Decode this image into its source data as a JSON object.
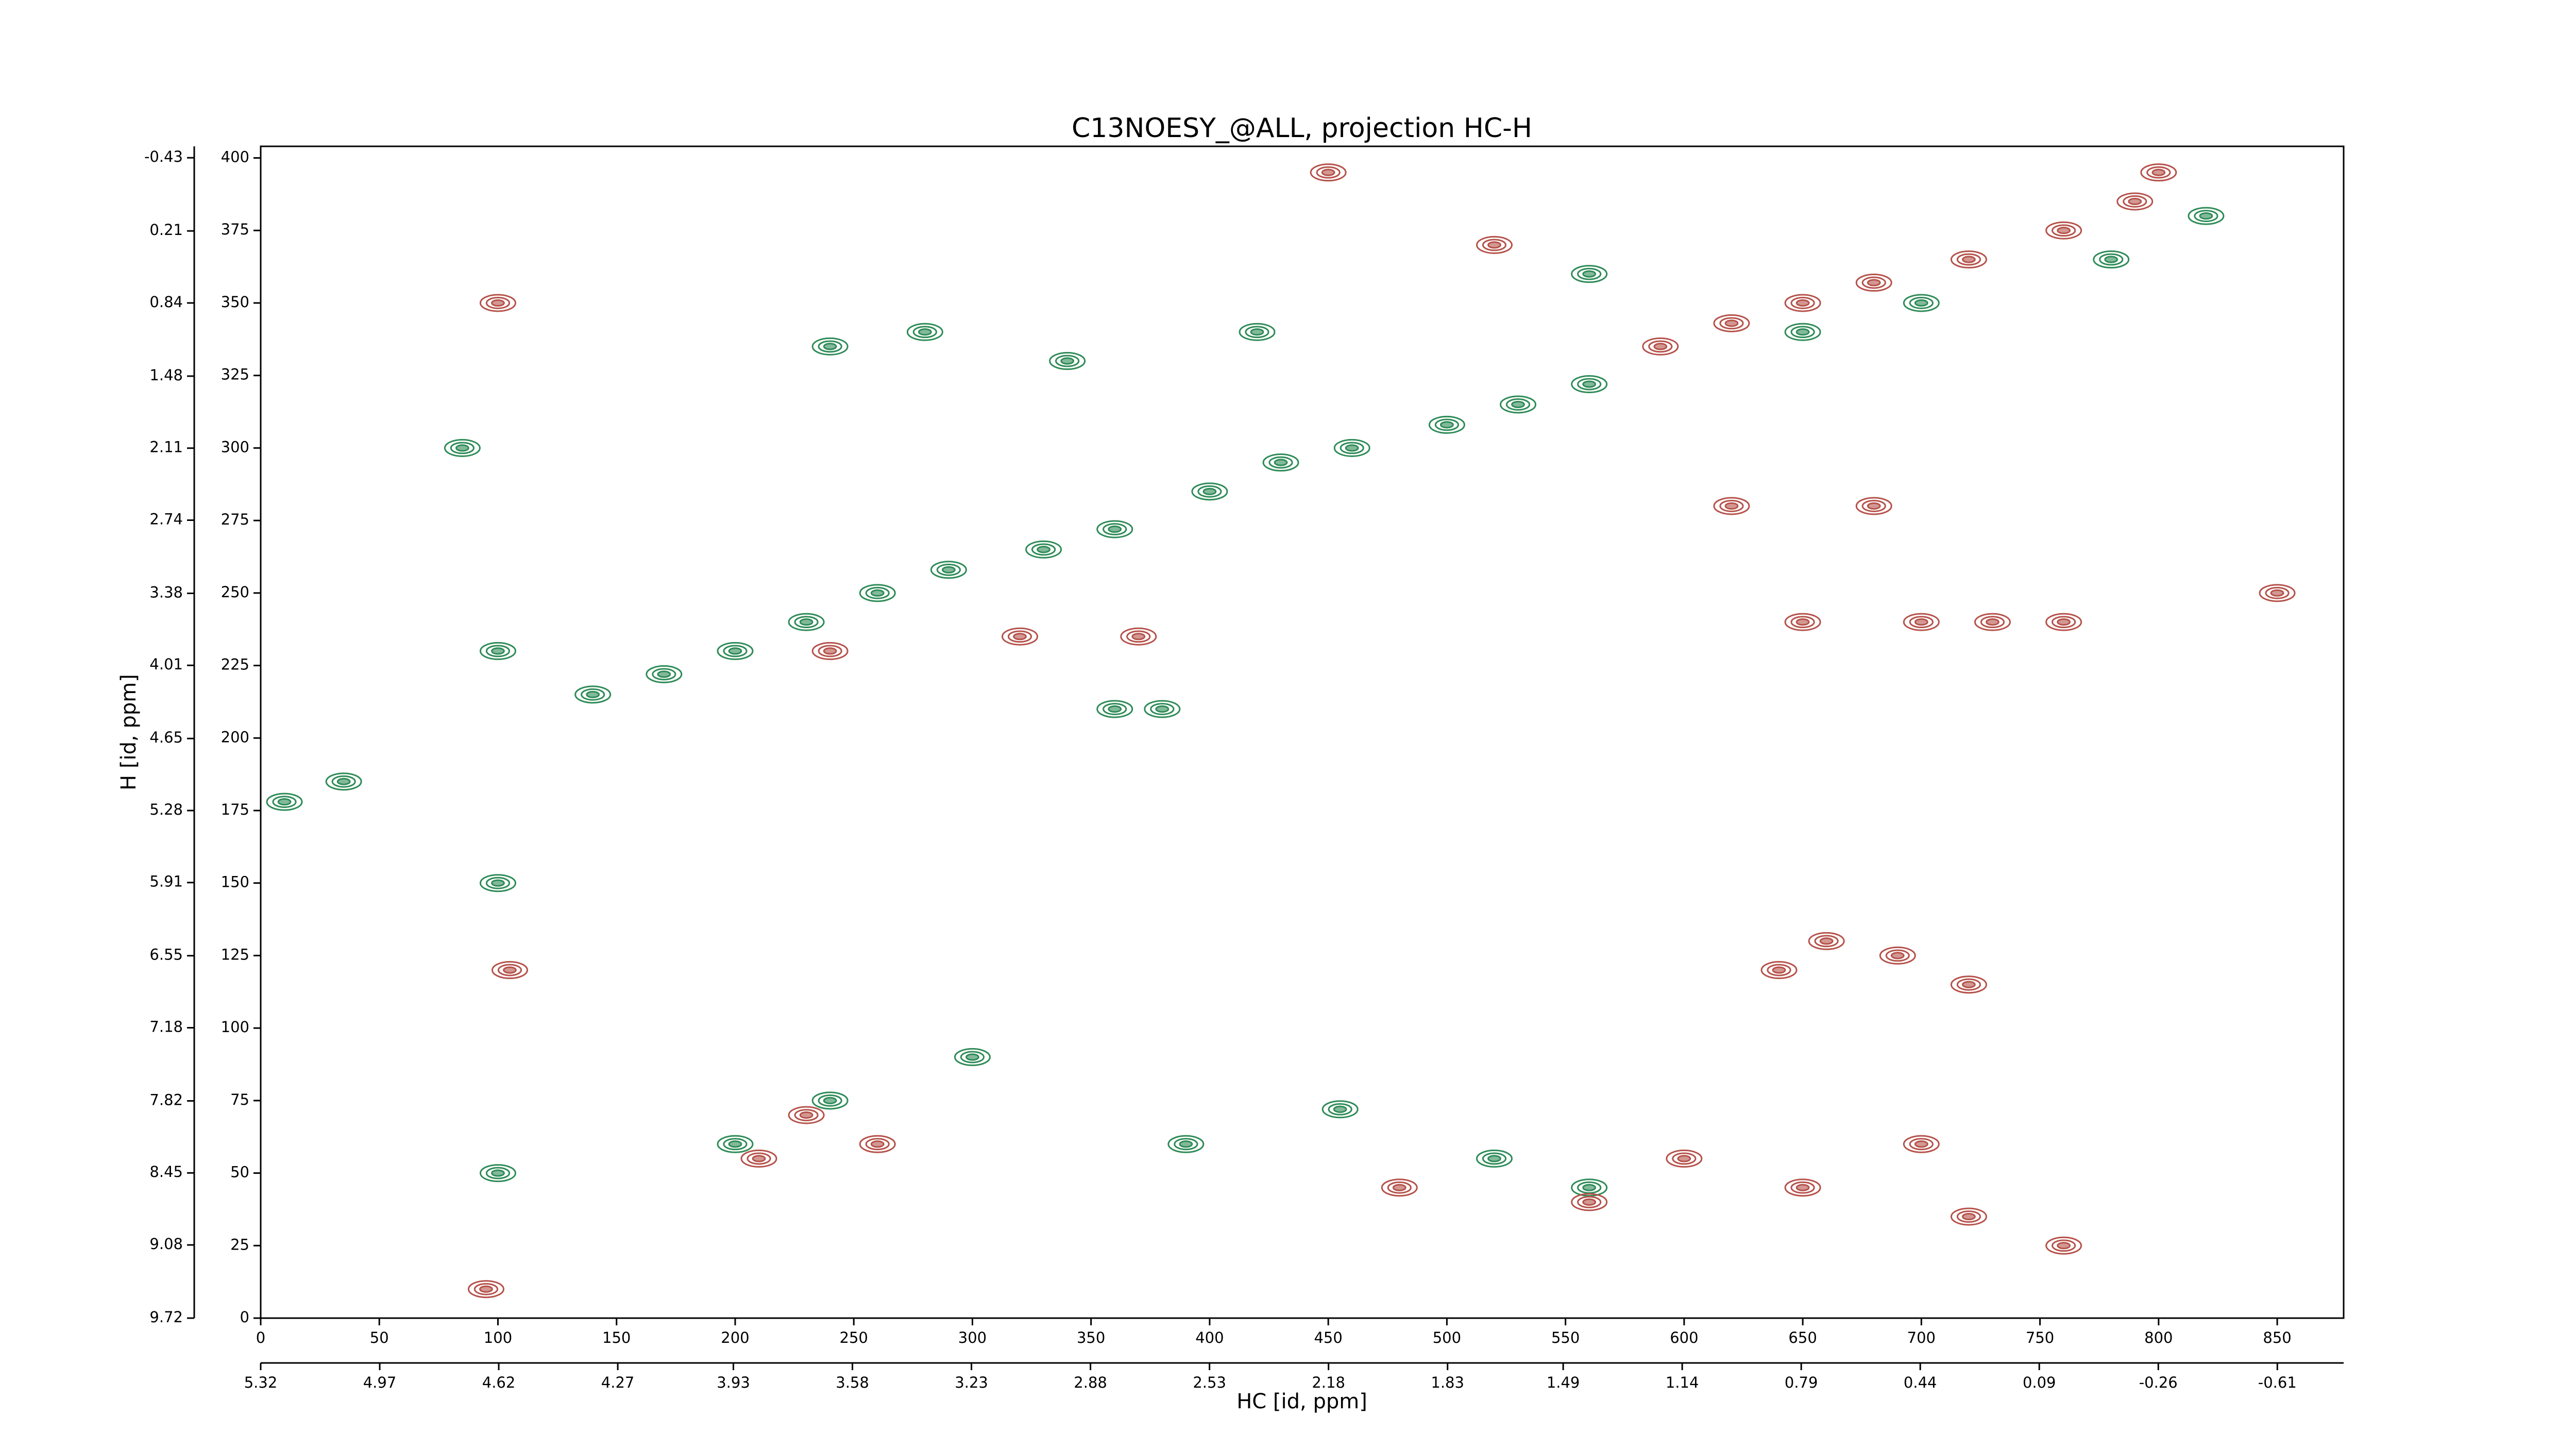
{
  "chart_data": {
    "type": "scatter",
    "title": "C13NOESY_@ALL, projection HC-H",
    "xlabel": "HC [id, ppm]",
    "ylabel": "H [id, ppm]",
    "xlim": [
      0,
      878
    ],
    "xticks": [
      0,
      50,
      100,
      150,
      200,
      250,
      300,
      350,
      400,
      450,
      500,
      550,
      600,
      650,
      700,
      750,
      800,
      850
    ],
    "x2lim": [
      5.32,
      -0.805
    ],
    "x2ticks": [
      5.32,
      4.97,
      4.62,
      4.27,
      3.93,
      3.58,
      3.23,
      2.88,
      2.53,
      2.18,
      1.83,
      1.49,
      1.14,
      0.79,
      0.44,
      0.09,
      -0.26,
      -0.61
    ],
    "ylim": [
      0,
      404
    ],
    "yticks": [
      0,
      25,
      50,
      75,
      100,
      125,
      150,
      175,
      200,
      225,
      250,
      275,
      300,
      325,
      350,
      375,
      400
    ],
    "y2lim": [
      9.72,
      -0.53
    ],
    "y2ticks": [
      9.72,
      9.08,
      8.45,
      7.82,
      7.18,
      6.55,
      5.91,
      5.28,
      4.65,
      4.01,
      3.38,
      2.74,
      2.11,
      1.48,
      0.84,
      0.21,
      -0.43
    ],
    "series": [
      {
        "color": "#2e8b57",
        "x": [
          140,
          170,
          200,
          230,
          260,
          290,
          330,
          360,
          400,
          430,
          460,
          500,
          530,
          560,
          650,
          700,
          780,
          820,
          10,
          35,
          380,
          360,
          300,
          240,
          390,
          455,
          520,
          560,
          200,
          240,
          340,
          560,
          100,
          100,
          100,
          85,
          280,
          420
        ],
        "values": [
          215,
          222,
          230,
          240,
          250,
          258,
          265,
          272,
          285,
          295,
          300,
          308,
          315,
          322,
          340,
          350,
          365,
          380,
          178,
          185,
          210,
          210,
          90,
          75,
          60,
          72,
          55,
          45,
          60,
          335,
          330,
          360,
          230,
          150,
          50,
          300,
          340,
          340
        ]
      },
      {
        "color": "#b5524a",
        "x": [
          590,
          620,
          650,
          680,
          720,
          760,
          790,
          800,
          100,
          105,
          95,
          240,
          320,
          370,
          650,
          700,
          730,
          760,
          620,
          680,
          640,
          660,
          690,
          720,
          650,
          700,
          720,
          760,
          230,
          210,
          260,
          480,
          560,
          600,
          450,
          520,
          850
        ],
        "values": [
          335,
          343,
          350,
          357,
          365,
          375,
          385,
          395,
          350,
          120,
          10,
          230,
          235,
          235,
          240,
          240,
          240,
          240,
          280,
          280,
          120,
          130,
          125,
          115,
          45,
          60,
          35,
          25,
          70,
          55,
          60,
          45,
          40,
          55,
          395,
          370,
          250
        ]
      }
    ]
  }
}
